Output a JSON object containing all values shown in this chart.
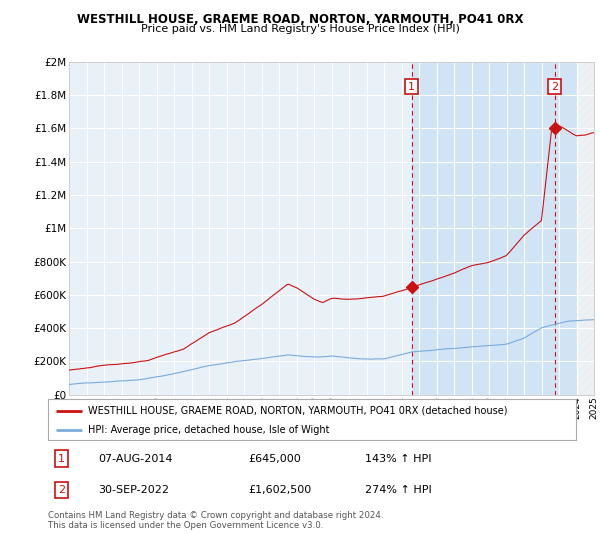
{
  "title": "WESTHILL HOUSE, GRAEME ROAD, NORTON, YARMOUTH, PO41 0RX",
  "subtitle": "Price paid vs. HM Land Registry's House Price Index (HPI)",
  "xlim": [
    1995.0,
    2025.0
  ],
  "ylim": [
    0,
    2000000
  ],
  "yticks": [
    0,
    200000,
    400000,
    600000,
    800000,
    1000000,
    1200000,
    1400000,
    1600000,
    1800000,
    2000000
  ],
  "ytick_labels": [
    "£0",
    "£200K",
    "£400K",
    "£600K",
    "£800K",
    "£1M",
    "£1.2M",
    "£1.4M",
    "£1.6M",
    "£1.8M",
    "£2M"
  ],
  "plot_bg_color": "#e8f0f8",
  "highlight_bg_color": "#d0e4f5",
  "grid_color": "#ffffff",
  "hpi_color": "#7aabdb",
  "price_color": "#cc1111",
  "sale1_x": 2014.583,
  "sale1_y": 645000,
  "sale2_x": 2022.75,
  "sale2_y": 1602500,
  "legend_house": "WESTHILL HOUSE, GRAEME ROAD, NORTON, YARMOUTH, PO41 0RX (detached house)",
  "legend_hpi": "HPI: Average price, detached house, Isle of Wight",
  "table_row1": [
    "1",
    "07-AUG-2014",
    "£645,000",
    "143% ↑ HPI"
  ],
  "table_row2": [
    "2",
    "30-SEP-2022",
    "£1,602,500",
    "274% ↑ HPI"
  ],
  "footnote": "Contains HM Land Registry data © Crown copyright and database right 2024.\nThis data is licensed under the Open Government Licence v3.0."
}
